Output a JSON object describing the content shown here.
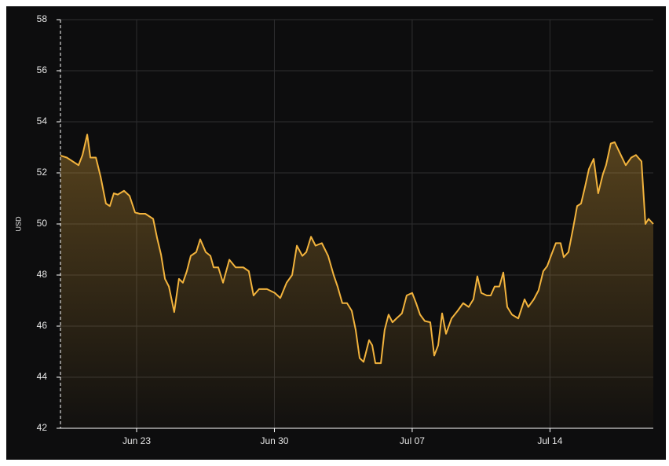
{
  "chart_data": {
    "type": "area",
    "y_label": "USD",
    "color": "#f2b33d",
    "grid": true,
    "xlim": [
      -3.87,
      26.25
    ],
    "xticks": [
      {
        "value": 0,
        "label": "Jun 23"
      },
      {
        "value": 7,
        "label": "Jun 30"
      },
      {
        "value": 14,
        "label": "Jul 07"
      },
      {
        "value": 21,
        "label": "Jul 14"
      }
    ],
    "ylim": [
      42,
      58
    ],
    "yticks": [
      42,
      44,
      46,
      48,
      50,
      52,
      54,
      56,
      58
    ],
    "x": [
      -3.87,
      -3.55,
      -3.15,
      -2.95,
      -2.75,
      -2.51,
      -2.35,
      -2.07,
      -1.83,
      -1.56,
      -1.36,
      -1.16,
      -0.96,
      -0.64,
      -0.36,
      -0.08,
      0.16,
      0.44,
      0.84,
      1.04,
      1.24,
      1.44,
      1.64,
      1.91,
      2.15,
      2.35,
      2.55,
      2.75,
      3.03,
      3.23,
      3.51,
      3.75,
      3.91,
      4.15,
      4.39,
      4.71,
      5.03,
      5.42,
      5.7,
      5.94,
      6.22,
      6.62,
      7.02,
      7.3,
      7.62,
      7.9,
      8.14,
      8.42,
      8.62,
      8.86,
      9.09,
      9.41,
      9.73,
      10.01,
      10.21,
      10.45,
      10.69,
      10.93,
      11.13,
      11.33,
      11.53,
      11.81,
      11.97,
      12.13,
      12.41,
      12.6,
      12.8,
      13.0,
      13.2,
      13.48,
      13.72,
      14.0,
      14.2,
      14.4,
      14.64,
      14.92,
      15.12,
      15.32,
      15.52,
      15.72,
      16.0,
      16.31,
      16.59,
      16.87,
      17.11,
      17.31,
      17.51,
      17.79,
      17.99,
      18.19,
      18.43,
      18.63,
      18.83,
      19.07,
      19.39,
      19.71,
      19.9,
      20.18,
      20.42,
      20.66,
      20.86,
      21.1,
      21.3,
      21.54,
      21.7,
      21.94,
      22.18,
      22.38,
      22.58,
      22.78,
      22.98,
      23.22,
      23.45,
      23.69,
      23.85,
      24.09,
      24.29,
      24.57,
      24.85,
      25.13,
      25.37,
      25.65,
      25.85,
      26.01,
      26.25
    ],
    "values": [
      52.68,
      52.6,
      52.4,
      52.3,
      52.7,
      53.5,
      52.6,
      52.6,
      51.85,
      50.8,
      50.7,
      51.2,
      51.15,
      51.3,
      51.1,
      50.45,
      50.4,
      50.4,
      50.2,
      49.45,
      48.8,
      47.85,
      47.55,
      46.55,
      47.85,
      47.7,
      48.15,
      48.75,
      48.9,
      49.4,
      48.9,
      48.75,
      48.3,
      48.3,
      47.7,
      48.6,
      48.3,
      48.3,
      48.15,
      47.2,
      47.45,
      47.45,
      47.3,
      47.1,
      47.7,
      48.0,
      49.15,
      48.75,
      48.9,
      49.5,
      49.15,
      49.25,
      48.75,
      48.0,
      47.55,
      46.9,
      46.9,
      46.6,
      45.85,
      44.75,
      44.6,
      45.45,
      45.25,
      44.55,
      44.55,
      45.85,
      46.45,
      46.15,
      46.3,
      46.5,
      47.2,
      47.3,
      46.9,
      46.45,
      46.2,
      46.15,
      44.85,
      45.25,
      46.5,
      45.7,
      46.3,
      46.6,
      46.9,
      46.75,
      47.05,
      47.95,
      47.3,
      47.2,
      47.2,
      47.55,
      47.55,
      48.1,
      46.75,
      46.45,
      46.3,
      47.05,
      46.75,
      47.05,
      47.4,
      48.15,
      48.35,
      48.85,
      49.25,
      49.25,
      48.7,
      48.9,
      49.85,
      50.7,
      50.8,
      51.45,
      52.15,
      52.55,
      51.2,
      51.95,
      52.3,
      53.15,
      53.2,
      52.75,
      52.3,
      52.6,
      52.7,
      52.45,
      50.0,
      50.2,
      50.0
    ]
  }
}
